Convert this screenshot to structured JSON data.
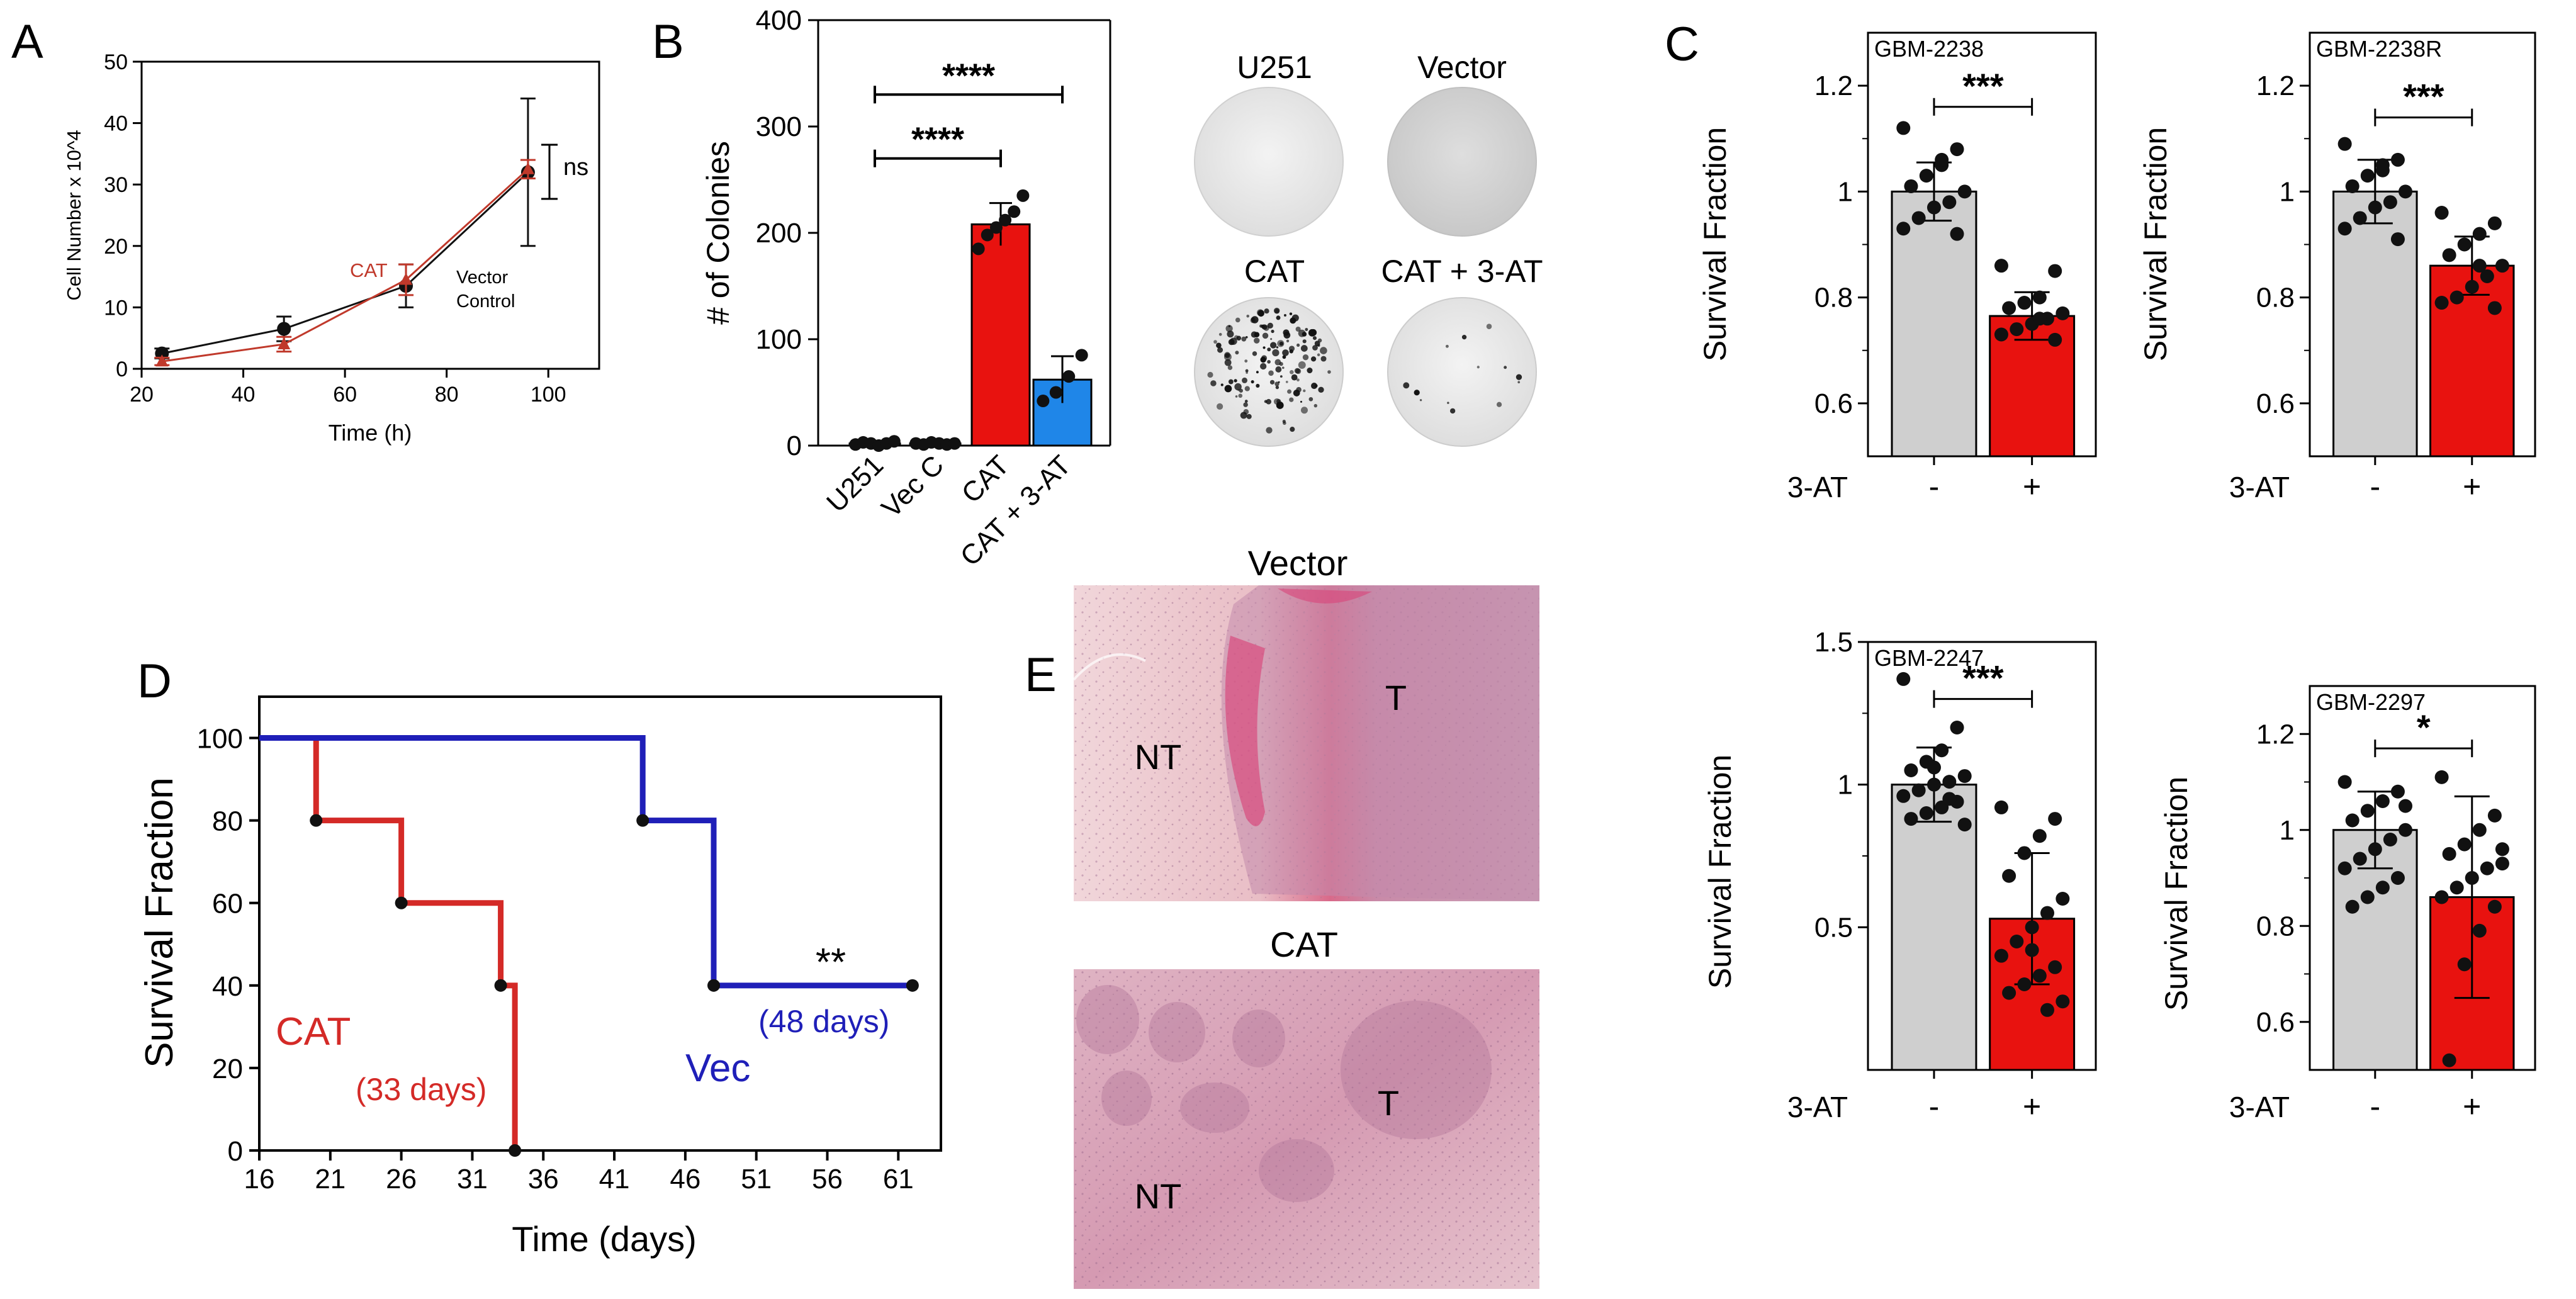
{
  "panels": {
    "a": {
      "letter": "A"
    },
    "b": {
      "letter": "B"
    },
    "c": {
      "letter": "C"
    },
    "d": {
      "letter": "D"
    },
    "e": {
      "letter": "E"
    }
  },
  "images_b": {
    "labels": [
      "U251",
      "Vector",
      "CAT",
      "CAT + 3-AT"
    ]
  },
  "images_e": {
    "titles": [
      "Vector",
      "CAT"
    ],
    "region_labels": {
      "nt": "NT",
      "t": "T"
    }
  },
  "colors": {
    "red": "#e8120f",
    "blue": "#1f86e8",
    "gray": "#cfcfcf",
    "km_red": "#d42a27",
    "km_blue": "#1f1fb8",
    "cat_label": "#c0392b"
  },
  "chart_data": [
    {
      "id": "a",
      "type": "line",
      "xlabel": "Time (h)",
      "ylabel": "Cell Number x 10^4",
      "xlim": [
        20,
        110
      ],
      "ylim": [
        0,
        50
      ],
      "xticks": [
        20,
        40,
        60,
        80,
        100
      ],
      "yticks": [
        0,
        10,
        20,
        30,
        40,
        50
      ],
      "series": [
        {
          "name": "Vector Control",
          "x": [
            24,
            48,
            72,
            96
          ],
          "y": [
            2.5,
            6.5,
            13.5,
            32
          ],
          "err": [
            0.8,
            2,
            3.5,
            12
          ]
        },
        {
          "name": "CAT",
          "x": [
            24,
            48,
            72,
            96
          ],
          "y": [
            1.2,
            4,
            14.5,
            32.5
          ],
          "err": [
            0.6,
            1.2,
            2.5,
            1.5
          ]
        }
      ],
      "annotations": {
        "ns": "ns",
        "cat": "CAT",
        "vector_line1": "Vector",
        "vector_line2": "Control"
      }
    },
    {
      "id": "b",
      "type": "bar",
      "ylabel": "# of Colonies",
      "ylim": [
        0,
        400
      ],
      "yticks": [
        0,
        100,
        200,
        300,
        400
      ],
      "categories": [
        "U251",
        "Vec C",
        "CAT",
        "CAT + 3-AT"
      ],
      "values": [
        2,
        2,
        208,
        62
      ],
      "errors": [
        1,
        1,
        20,
        22
      ],
      "points": [
        [
          1,
          3,
          2,
          0,
          2,
          4
        ],
        [
          2,
          1,
          3,
          2,
          1,
          2
        ],
        [
          185,
          198,
          205,
          212,
          220,
          235
        ],
        [
          42,
          50,
          65,
          85
        ]
      ],
      "significance": [
        {
          "label": "****",
          "from": 0,
          "to": 3,
          "y": 330
        },
        {
          "label": "****",
          "from": 0,
          "to": 2,
          "y": 270
        }
      ]
    },
    {
      "id": "c1",
      "type": "bar",
      "title": "GBM-2238",
      "ylabel": "Survival Fraction",
      "xlabel": "3-AT",
      "categories": [
        "-",
        "+"
      ],
      "ylim": [
        0.5,
        1.3
      ],
      "yticks": [
        0.6,
        0.8,
        1.0,
        1.2
      ],
      "values": [
        1.0,
        0.765
      ],
      "errors": [
        0.055,
        0.045
      ],
      "points": [
        [
          1.12,
          1.08,
          1.05,
          1.03,
          1.01,
          1.0,
          0.98,
          0.97,
          0.95,
          0.93,
          0.92,
          1.06
        ],
        [
          0.86,
          0.85,
          0.8,
          0.79,
          0.78,
          0.77,
          0.76,
          0.75,
          0.74,
          0.73,
          0.72,
          0.76
        ]
      ],
      "significance": {
        "label": "***",
        "y": 1.16
      }
    },
    {
      "id": "c2",
      "type": "bar",
      "title": "GBM-2238R",
      "ylabel": "Survival Fraction",
      "xlabel": "3-AT",
      "categories": [
        "-",
        "+"
      ],
      "ylim": [
        0.5,
        1.3
      ],
      "yticks": [
        0.6,
        0.8,
        1.0,
        1.2
      ],
      "values": [
        1.0,
        0.86
      ],
      "errors": [
        0.06,
        0.055
      ],
      "points": [
        [
          1.09,
          1.06,
          1.05,
          1.03,
          1.01,
          1.0,
          0.98,
          0.97,
          0.95,
          0.93,
          0.91,
          1.04
        ],
        [
          0.96,
          0.94,
          0.92,
          0.9,
          0.88,
          0.86,
          0.84,
          0.82,
          0.8,
          0.79,
          0.78,
          0.86
        ]
      ],
      "significance": {
        "label": "***",
        "y": 1.14
      }
    },
    {
      "id": "c3",
      "type": "bar",
      "title": "GBM-2247",
      "ylabel": "Survival Fraction",
      "xlabel": "3-AT",
      "categories": [
        "-",
        "+"
      ],
      "ylim": [
        0.0,
        1.5
      ],
      "yticks": [
        0.5,
        1.0,
        1.5
      ],
      "values": [
        1.0,
        0.53
      ],
      "errors": [
        0.13,
        0.23
      ],
      "points": [
        [
          1.37,
          1.2,
          1.12,
          1.08,
          1.05,
          1.03,
          1.01,
          1.0,
          0.98,
          0.96,
          0.94,
          0.92,
          0.9,
          0.88,
          0.86,
          0.95,
          1.06
        ],
        [
          0.92,
          0.88,
          0.82,
          0.76,
          0.68,
          0.6,
          0.55,
          0.5,
          0.45,
          0.4,
          0.36,
          0.33,
          0.3,
          0.27,
          0.24,
          0.21,
          0.42
        ]
      ],
      "significance": {
        "label": "***",
        "y": 1.3
      }
    },
    {
      "id": "c4",
      "type": "bar",
      "title": "GBM-2297",
      "ylabel": "Survival Fraction",
      "xlabel": "3-AT",
      "categories": [
        "-",
        "+"
      ],
      "ylim": [
        0.5,
        1.3
      ],
      "yticks": [
        0.6,
        0.8,
        1.0,
        1.2
      ],
      "values": [
        1.0,
        0.86
      ],
      "errors": [
        0.08,
        0.21
      ],
      "points": [
        [
          1.1,
          1.08,
          1.06,
          1.04,
          1.02,
          1.0,
          0.98,
          0.96,
          0.94,
          0.92,
          0.9,
          0.88,
          0.86,
          0.84,
          1.05
        ],
        [
          1.11,
          1.03,
          1.0,
          0.97,
          0.95,
          0.93,
          0.92,
          0.9,
          0.88,
          0.86,
          0.84,
          0.79,
          0.72,
          0.52,
          0.96
        ]
      ],
      "significance": {
        "label": "*",
        "y": 1.17
      }
    },
    {
      "id": "d",
      "type": "line",
      "subtype": "kaplan-meier",
      "xlabel": "Time (days)",
      "ylabel": "Survival Fraction",
      "xlim": [
        16,
        64
      ],
      "ylim": [
        0,
        110
      ],
      "xticks": [
        16,
        21,
        26,
        31,
        36,
        41,
        46,
        51,
        56,
        61
      ],
      "yticks": [
        0,
        20,
        40,
        60,
        80,
        100
      ],
      "series": [
        {
          "name": "CAT",
          "times": [
            16,
            20,
            26,
            33,
            34
          ],
          "survival": [
            100,
            80,
            60,
            40,
            0
          ],
          "censor": [
            [
              20,
              80
            ],
            [
              26,
              60
            ],
            [
              33,
              40
            ],
            [
              34,
              0
            ]
          ]
        },
        {
          "name": "Vec",
          "times": [
            16,
            43,
            48,
            62
          ],
          "survival": [
            100,
            80,
            40,
            40
          ],
          "censor": [
            [
              43,
              80
            ],
            [
              48,
              40
            ],
            [
              62,
              40
            ]
          ]
        }
      ],
      "annotations": {
        "cat": "CAT",
        "cat_median": "(33 days)",
        "vec": "Vec",
        "vec_median": "(48 days)",
        "sig": "**"
      }
    }
  ]
}
